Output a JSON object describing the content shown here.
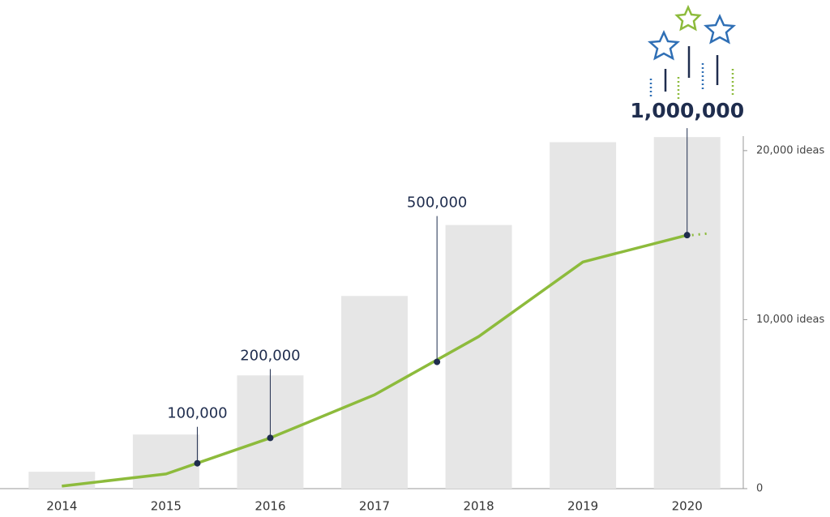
{
  "chart_data": {
    "type": "bar",
    "x": [
      2014,
      2015,
      2016,
      2017,
      2018,
      2019,
      2020
    ],
    "xlim": [
      2013.5,
      2020.5
    ],
    "series": [
      {
        "type": "bar",
        "color": "#e6e6e6",
        "values": [
          1000,
          3200,
          6700,
          11400,
          15600,
          20500,
          20800
        ]
      },
      {
        "type": "line",
        "color": "#8dbb3c",
        "axis": "y2",
        "values": [
          10000,
          58000,
          200000,
          370000,
          600000,
          894000,
          1000000
        ]
      }
    ],
    "ylim": [
      0,
      21000
    ],
    "yticks": [
      0,
      {
        "value": 10000,
        "label": "10,000 ideas"
      },
      {
        "value": 20000,
        "label": "20,000 ideas"
      }
    ],
    "y2lim": [
      0,
      1400000
    ],
    "annotations": [
      {
        "x": 2015.3,
        "value": 100000,
        "label": "100,000"
      },
      {
        "x": 2016,
        "value": 200000,
        "label": "200,000"
      },
      {
        "x": 2017.6,
        "value": 500000,
        "label": "500,000"
      },
      {
        "x": 2020,
        "value": 1000000,
        "label": "1,000,000"
      }
    ]
  }
}
